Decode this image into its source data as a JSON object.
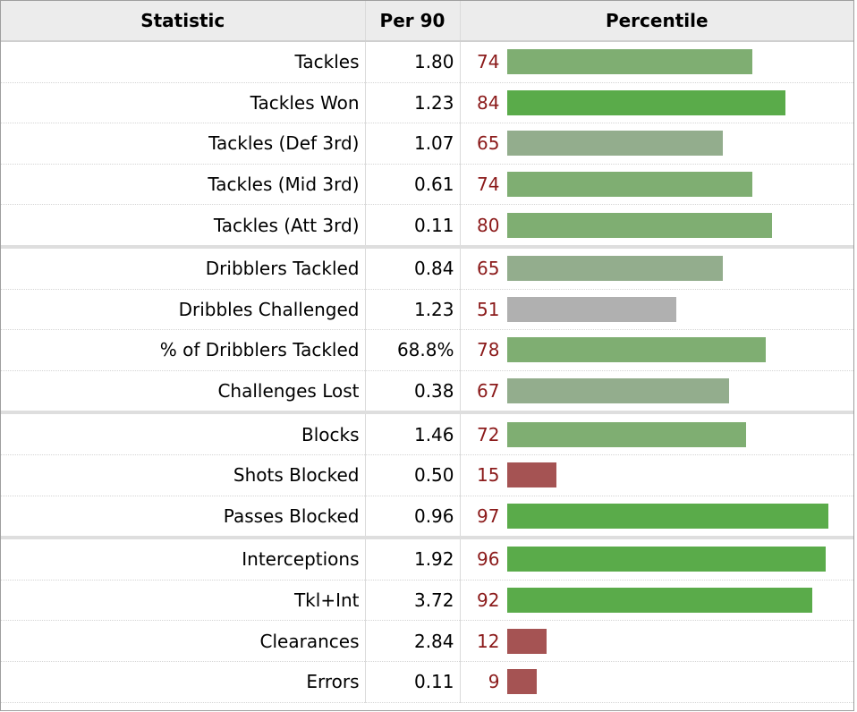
{
  "table": {
    "headers": {
      "statistic": "Statistic",
      "per90": "Per 90",
      "percentile": "Percentile"
    }
  },
  "colors": {
    "high": "#5aab4a",
    "mid_high": "#7fae72",
    "mid": "#93ad8d",
    "neutral": "#b0b0b0",
    "low": "#a55353",
    "percentile_text": "#8b1a1a"
  },
  "chart_data": {
    "type": "table",
    "columns": [
      "Statistic",
      "Per 90",
      "Percentile"
    ],
    "percentile_range": [
      0,
      100
    ],
    "groups": [
      [
        {
          "stat": "Tackles",
          "per90": "1.80",
          "percentile": 74
        },
        {
          "stat": "Tackles Won",
          "per90": "1.23",
          "percentile": 84
        },
        {
          "stat": "Tackles (Def 3rd)",
          "per90": "1.07",
          "percentile": 65
        },
        {
          "stat": "Tackles (Mid 3rd)",
          "per90": "0.61",
          "percentile": 74
        },
        {
          "stat": "Tackles (Att 3rd)",
          "per90": "0.11",
          "percentile": 80
        }
      ],
      [
        {
          "stat": "Dribblers Tackled",
          "per90": "0.84",
          "percentile": 65
        },
        {
          "stat": "Dribbles Challenged",
          "per90": "1.23",
          "percentile": 51
        },
        {
          "stat": "% of Dribblers Tackled",
          "per90": "68.8%",
          "percentile": 78
        },
        {
          "stat": "Challenges Lost",
          "per90": "0.38",
          "percentile": 67
        }
      ],
      [
        {
          "stat": "Blocks",
          "per90": "1.46",
          "percentile": 72
        },
        {
          "stat": "Shots Blocked",
          "per90": "0.50",
          "percentile": 15
        },
        {
          "stat": "Passes Blocked",
          "per90": "0.96",
          "percentile": 97
        }
      ],
      [
        {
          "stat": "Interceptions",
          "per90": "1.92",
          "percentile": 96
        },
        {
          "stat": "Tkl+Int",
          "per90": "3.72",
          "percentile": 92
        },
        {
          "stat": "Clearances",
          "per90": "2.84",
          "percentile": 12
        },
        {
          "stat": "Errors",
          "per90": "0.11",
          "percentile": 9
        }
      ]
    ]
  }
}
